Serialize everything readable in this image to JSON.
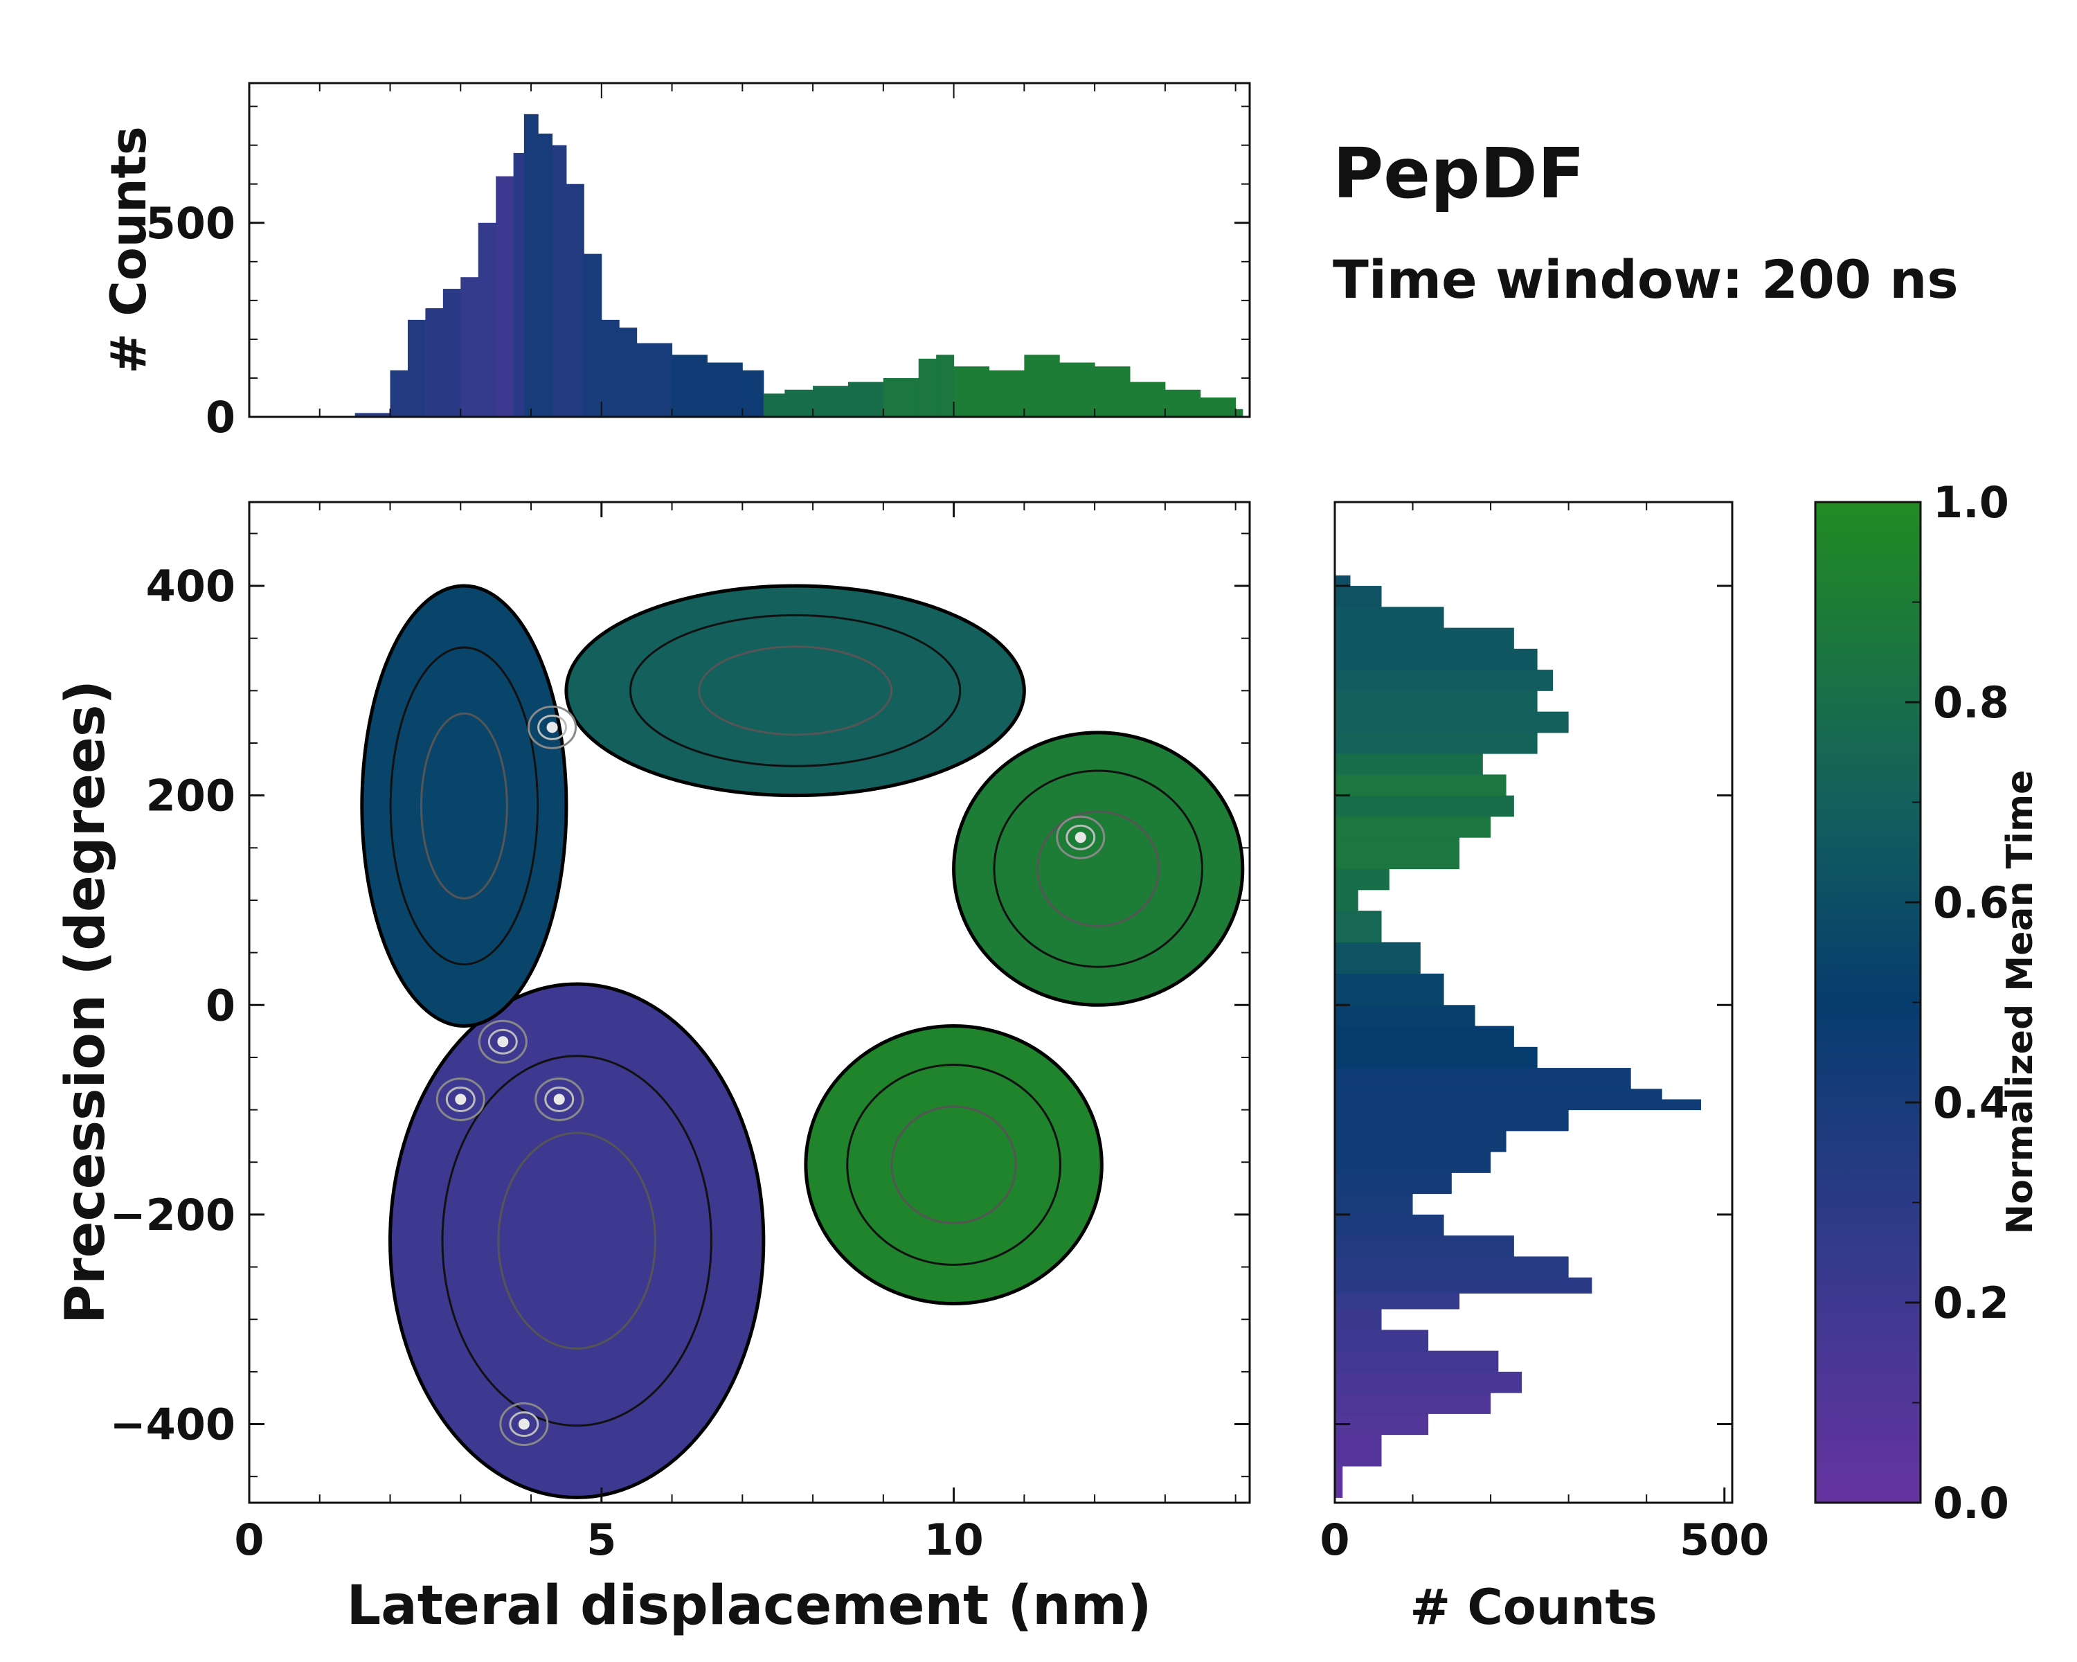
{
  "title": "PepDF",
  "subtitle": "Time window: 200 ns",
  "colors": {
    "purple": "#5c34a0",
    "navy": "#1e3a7a",
    "teal": "#13605d",
    "green": "#228b22"
  },
  "chart_data": [
    {
      "type": "scatter",
      "name": "main-density",
      "description_kind": "2D density map colored by normalized mean time with contour lines",
      "xlabel": "Lateral displacement (nm)",
      "ylabel": "Precession (degrees)",
      "xlim": [
        0,
        14.2
      ],
      "ylim": [
        -475,
        480
      ],
      "xticks": [
        0,
        5,
        10
      ],
      "xtick_labels": [
        "0",
        "5",
        "10"
      ],
      "yticks": [
        -400,
        -200,
        0,
        200,
        400
      ],
      "ytick_labels": [
        "−400",
        "−200",
        "0",
        "200",
        "400"
      ],
      "regions": [
        {
          "name": "low-time-lobe",
          "x": [
            2.0,
            7.3
          ],
          "y": [
            -470,
            20
          ],
          "mean_time": 0.2
        },
        {
          "name": "upper-left-lobe",
          "x": [
            1.6,
            4.5
          ],
          "y": [
            -20,
            400
          ],
          "mean_time": 0.55
        },
        {
          "name": "top-bridge",
          "x": [
            4.5,
            11.0
          ],
          "y": [
            200,
            400
          ],
          "mean_time": 0.7
        },
        {
          "name": "right-lobe",
          "x": [
            10.0,
            14.1
          ],
          "y": [
            0,
            260
          ],
          "mean_time": 0.9
        },
        {
          "name": "lower-right-arm",
          "x": [
            7.9,
            12.1
          ],
          "y": [
            -285,
            -20
          ],
          "mean_time": 0.95
        }
      ],
      "peaks": [
        {
          "x": 3.0,
          "y": -90
        },
        {
          "x": 3.6,
          "y": -35
        },
        {
          "x": 4.4,
          "y": -90
        },
        {
          "x": 3.9,
          "y": -400
        },
        {
          "x": 4.3,
          "y": 265
        },
        {
          "x": 11.8,
          "y": 160
        }
      ]
    },
    {
      "type": "bar",
      "name": "top-histogram",
      "xlabel": "",
      "ylabel": "# Counts",
      "xlim": [
        0,
        14.2
      ],
      "ylim": [
        0,
        860
      ],
      "yticks": [
        0,
        500
      ],
      "ytick_labels": [
        "0",
        "500"
      ],
      "x": [
        1.0,
        1.5,
        2.0,
        2.25,
        2.5,
        2.75,
        3.0,
        3.25,
        3.5,
        3.75,
        3.9,
        4.1,
        4.3,
        4.5,
        4.75,
        5.0,
        5.25,
        5.5,
        6.0,
        6.5,
        7.0,
        7.3,
        7.6,
        8.0,
        8.5,
        9.0,
        9.5,
        9.75,
        10.0,
        10.5,
        11.0,
        11.5,
        12.0,
        12.5,
        13.0,
        13.5,
        14.0,
        14.1
      ],
      "values": [
        0,
        10,
        120,
        250,
        280,
        330,
        360,
        500,
        620,
        680,
        780,
        730,
        700,
        600,
        420,
        250,
        230,
        190,
        160,
        140,
        120,
        60,
        70,
        80,
        90,
        100,
        150,
        160,
        130,
        120,
        160,
        140,
        130,
        90,
        70,
        50,
        20,
        0
      ],
      "mean_time": [
        0.3,
        0.3,
        0.35,
        0.35,
        0.3,
        0.3,
        0.25,
        0.25,
        0.2,
        0.3,
        0.4,
        0.4,
        0.35,
        0.35,
        0.4,
        0.4,
        0.4,
        0.4,
        0.45,
        0.45,
        0.45,
        0.8,
        0.8,
        0.8,
        0.8,
        0.85,
        0.85,
        0.85,
        0.9,
        0.9,
        0.9,
        0.9,
        0.9,
        0.9,
        0.9,
        0.9,
        0.9,
        0.9
      ]
    },
    {
      "type": "bar",
      "name": "right-histogram",
      "orientation": "horizontal",
      "xlabel": "# Counts",
      "ylabel": "",
      "xlim": [
        0,
        510
      ],
      "ylim": [
        -475,
        480
      ],
      "xticks": [
        0,
        500
      ],
      "xtick_labels": [
        "0",
        "500"
      ],
      "y": [
        -470,
        -440,
        -410,
        -390,
        -370,
        -350,
        -330,
        -310,
        -290,
        -275,
        -260,
        -240,
        -220,
        -200,
        -180,
        -160,
        -140,
        -120,
        -100,
        -90,
        -80,
        -60,
        -40,
        -20,
        0,
        30,
        60,
        90,
        110,
        130,
        160,
        180,
        200,
        220,
        240,
        260,
        280,
        300,
        320,
        340,
        360,
        380,
        400,
        410
      ],
      "values": [
        10,
        60,
        120,
        200,
        240,
        210,
        120,
        60,
        160,
        330,
        300,
        230,
        140,
        100,
        150,
        200,
        220,
        300,
        470,
        420,
        380,
        260,
        230,
        180,
        140,
        110,
        60,
        30,
        70,
        160,
        200,
        230,
        220,
        190,
        260,
        300,
        260,
        280,
        260,
        230,
        140,
        60,
        20,
        0
      ],
      "mean_time": [
        0.05,
        0.08,
        0.1,
        0.12,
        0.15,
        0.18,
        0.2,
        0.22,
        0.25,
        0.3,
        0.32,
        0.35,
        0.38,
        0.4,
        0.42,
        0.44,
        0.45,
        0.45,
        0.45,
        0.45,
        0.45,
        0.5,
        0.5,
        0.52,
        0.55,
        0.62,
        0.75,
        0.8,
        0.8,
        0.85,
        0.85,
        0.8,
        0.85,
        0.8,
        0.72,
        0.7,
        0.7,
        0.68,
        0.65,
        0.65,
        0.65,
        0.62,
        0.6,
        0.6
      ]
    },
    {
      "type": "heatmap",
      "name": "colorbar",
      "label": "Normalized Mean Time",
      "range": [
        0.0,
        1.0
      ],
      "ticks": [
        0.0,
        0.2,
        0.4,
        0.6,
        0.8,
        1.0
      ],
      "tick_labels": [
        "0.0",
        "0.2",
        "0.4",
        "0.6",
        "0.8",
        "1.0"
      ],
      "stops": [
        {
          "value": 0.0,
          "color": "#6633a0"
        },
        {
          "value": 0.25,
          "color": "#343a8c"
        },
        {
          "value": 0.5,
          "color": "#063c6e"
        },
        {
          "value": 0.7,
          "color": "#13605d"
        },
        {
          "value": 1.0,
          "color": "#228b22"
        }
      ]
    }
  ]
}
